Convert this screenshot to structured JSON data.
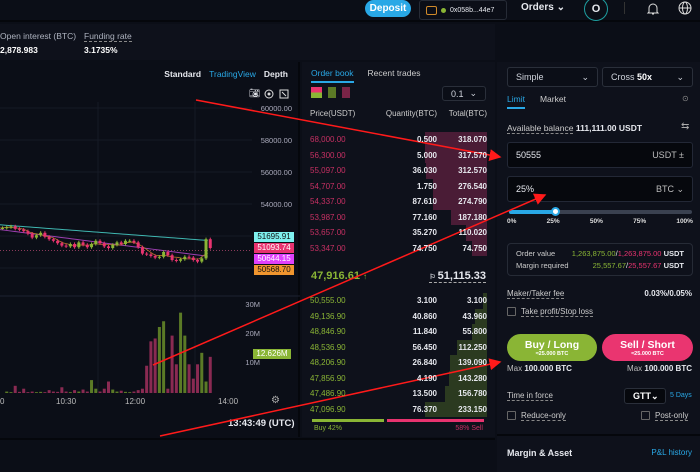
{
  "topbar": {
    "deposit": "Deposit",
    "wallet": "0x058b...44e7",
    "orders": "Orders",
    "avatar": "O"
  },
  "stats": {
    "open_interest_label": "Open interest (BTC)",
    "open_interest": "2,878.983",
    "funding_label": "Funding rate",
    "funding": "3.1735%"
  },
  "chart": {
    "views": [
      "Standard",
      "TradingView",
      "Depth"
    ],
    "active_view": "TradingView",
    "price_ticks": [
      "60000.00",
      "58000.00",
      "56000.00",
      "54000.00"
    ],
    "volume_ticks": [
      "30M",
      "20M",
      "10M"
    ],
    "time_ticks": [
      "10:30",
      "12:00",
      "14:00"
    ],
    "time_tick_first": "0",
    "clock": "13:43:49 (UTC)",
    "tags": [
      {
        "value": "51695.91",
        "color": "#7ef0ee"
      },
      {
        "value": "51093.74",
        "color": "#e8336f"
      },
      {
        "value": "50644.15",
        "color": "#e040fb"
      },
      {
        "value": "50568.70",
        "color": "#f0952e"
      }
    ],
    "volume_tag": "12.626M",
    "candles_close": [
      52500,
      52550,
      52600,
      52450,
      52400,
      52300,
      52150,
      51900,
      52050,
      52200,
      51950,
      51800,
      51700,
      51550,
      51400,
      51350,
      51500,
      51300,
      51600,
      51450,
      51300,
      51500,
      51700,
      51550,
      51350,
      51250,
      51450,
      51600,
      51500,
      51700,
      51700,
      51600,
      51300,
      50900,
      50850,
      50750,
      50650,
      50700,
      51000,
      50800,
      50500,
      50450,
      50550,
      50700,
      50650,
      50500,
      50400,
      50600,
      51800,
      51250
    ],
    "volumes_m": [
      0,
      0.5,
      0.3,
      2.5,
      0.4,
      1.5,
      0.3,
      0.5,
      0.3,
      0.4,
      0.3,
      1,
      0.5,
      0.4,
      2,
      0.5,
      0.3,
      1,
      0.5,
      1.2,
      0.5,
      4.5,
      1.5,
      0.5,
      1.5,
      4,
      1.2,
      0.5,
      0.8,
      0.4,
      0.3,
      0.5,
      1,
      1.5,
      9.5,
      18,
      19,
      23,
      25,
      1.5,
      20,
      10,
      28,
      20,
      10,
      5,
      10,
      14,
      4,
      12.6
    ]
  },
  "orderbook": {
    "tabs": [
      "Order book",
      "Recent trades"
    ],
    "step": "0.1",
    "headers": [
      "Price(USDT)",
      "Quantity(BTC)",
      "Total(BTC)"
    ],
    "asks": [
      [
        "68,000.00",
        "0.500",
        "318.070"
      ],
      [
        "56,300.00",
        "5.000",
        "317.570"
      ],
      [
        "55,097.00",
        "36.030",
        "312.570"
      ],
      [
        "54,707.00",
        "1.750",
        "276.540"
      ],
      [
        "54,337.00",
        "87.610",
        "274.790"
      ],
      [
        "53,987.00",
        "77.160",
        "187.180"
      ],
      [
        "53,657.00",
        "35.270",
        "110.020"
      ],
      [
        "53,347.00",
        "74.750",
        "74.750"
      ]
    ],
    "last_price": "47,916.61",
    "last_arrow": "↑",
    "mark_price": "51,115.33",
    "bids": [
      [
        "50,555.00",
        "3.100",
        "3.100"
      ],
      [
        "49,136.90",
        "40.860",
        "43.960"
      ],
      [
        "48,846.90",
        "11.840",
        "55.800"
      ],
      [
        "48,536.90",
        "56.450",
        "112.250"
      ],
      [
        "48,206.90",
        "26.840",
        "139.090"
      ],
      [
        "47,856.90",
        "4.190",
        "143.280"
      ],
      [
        "47,486.90",
        "13.500",
        "156.780"
      ],
      [
        "47,096.90",
        "76.370",
        "233.150"
      ]
    ],
    "buy_pct": "Buy 42%",
    "sell_pct": "58% Sell",
    "buy_ratio": 42
  },
  "order": {
    "mode": "Simple",
    "margin": "Cross",
    "leverage": "50x",
    "tabs": [
      "Limit",
      "Market"
    ],
    "balance_label": "Available balance",
    "balance": "111,111.00 USDT",
    "price": "50555",
    "price_unit": "USDT",
    "size": "25%",
    "size_unit": "BTC",
    "slider_percent": 25,
    "slider_labels": [
      "0%",
      "25%",
      "50%",
      "75%",
      "100%"
    ],
    "order_value_label": "Order value",
    "order_value_buy": "1,263,875.00",
    "order_value_sell": "1,263,875.00",
    "usdt": "USDT",
    "margin_label": "Margin required",
    "margin_buy": "25,557.67",
    "margin_sell": "25,557.67",
    "fee_label": "Maker/Taker fee",
    "fee": "0.03%/0.05%",
    "tpsl": "Take profit/Stop loss",
    "buy": "Buy / Long",
    "buy_sub": "≈25.000 BTC",
    "sell": "Sell / Short",
    "sell_sub": "≈25.000 BTC",
    "max_label": "Max",
    "max_buy": "100.000 BTC",
    "max_sell": "100.000 BTC",
    "tif_label": "Time in force",
    "tif": "GTT",
    "tif_days": "5 Days",
    "reduce": "Reduce-only",
    "post": "Post-only"
  },
  "margin_asset": {
    "title": "Margin & Asset",
    "pnl": "P&L history"
  },
  "colors": {
    "buy": "#8ab535",
    "sell": "#e8336f",
    "accent": "#29a8e6"
  }
}
